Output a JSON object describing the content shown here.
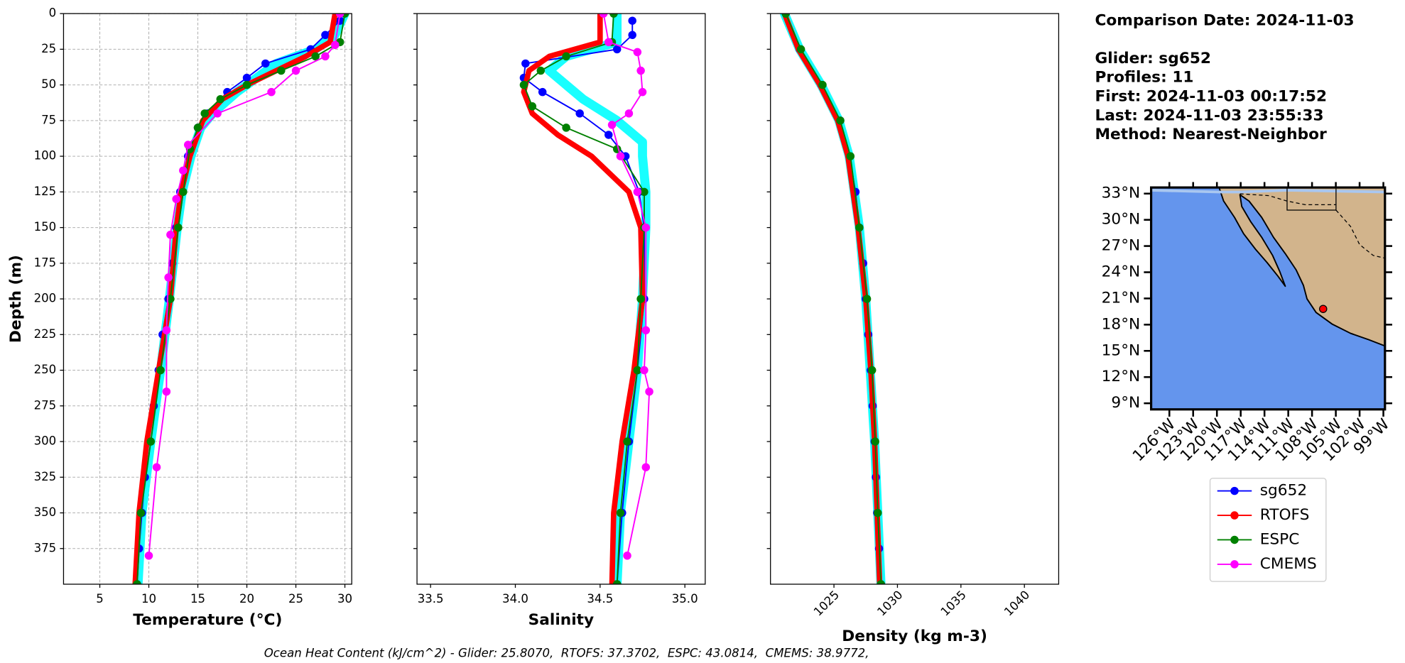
{
  "chart_data": [
    {
      "type": "line",
      "xlabel": "Temperature (°C)",
      "ylabel": "Depth (m)",
      "grid": true,
      "invert_y": true,
      "xlim": [
        1.3,
        30.7
      ],
      "xticks": [
        5,
        10,
        15,
        20,
        25,
        30
      ],
      "ylim": [
        0,
        400
      ],
      "yticks": [
        0,
        25,
        50,
        75,
        100,
        125,
        150,
        175,
        200,
        225,
        250,
        275,
        300,
        325,
        350,
        375
      ],
      "series": [
        {
          "color": "#00ffff",
          "depths": [
            0,
            15,
            25,
            35,
            45,
            55,
            70,
            80,
            100,
            125,
            150,
            200,
            250,
            300,
            350,
            400
          ],
          "values": [
            30,
            29,
            27,
            23,
            21,
            19,
            16.5,
            15.3,
            14.3,
            13.4,
            12.9,
            12.1,
            11.2,
            10.2,
            9.3,
            8.9
          ]
        },
        {
          "name": "sg652",
          "color": "#0000ff",
          "marker": true,
          "depths": [
            5,
            15,
            25,
            35,
            45,
            55,
            70,
            80,
            100,
            125,
            150,
            175,
            200,
            225,
            250,
            275,
            300,
            325,
            350,
            375,
            400
          ],
          "values": [
            29.5,
            28,
            26.5,
            21.9,
            20,
            18,
            16,
            15,
            14,
            13.2,
            12.8,
            12.4,
            12,
            11.4,
            11,
            10.5,
            10,
            9.6,
            9.3,
            9,
            8.8
          ]
        },
        {
          "name": "RTOFS",
          "color": "#ff0000",
          "marker": false,
          "width": 6,
          "depths": [
            0,
            20,
            30,
            40,
            50,
            60,
            75,
            100,
            125,
            150,
            200,
            250,
            300,
            350,
            400
          ],
          "values": [
            29,
            28.5,
            26,
            23,
            20,
            17.5,
            15.5,
            14.2,
            13.3,
            12.8,
            12.2,
            11,
            9.8,
            9,
            8.6
          ]
        },
        {
          "name": "ESPC",
          "color": "#008000",
          "marker": true,
          "depths": [
            0,
            20,
            30,
            40,
            50,
            60,
            70,
            80,
            95,
            125,
            150,
            200,
            250,
            300,
            350,
            400
          ],
          "values": [
            30,
            29.5,
            27,
            23.5,
            20,
            17.3,
            15.7,
            15,
            14.2,
            13.5,
            13,
            12.2,
            11.2,
            10.2,
            9.2,
            8.8
          ]
        },
        {
          "name": "CMEMS",
          "color": "#ff00ff",
          "marker": true,
          "depths": [
            0,
            22,
            30,
            40,
            55,
            70,
            92,
            110,
            130,
            155,
            185,
            222,
            265,
            318,
            380
          ],
          "values": [
            29.5,
            29,
            28,
            25,
            22.5,
            17,
            14,
            13.5,
            12.8,
            12.2,
            12,
            11.8,
            11.8,
            10.8,
            10
          ]
        }
      ]
    },
    {
      "type": "line",
      "xlabel": "Salinity",
      "sharey": true,
      "grid": false,
      "invert_y": true,
      "xlim": [
        33.42,
        35.12
      ],
      "xticks": [
        33.5,
        {
          "value": 34,
          "label": "34.0"
        },
        34.5,
        {
          "value": 35,
          "label": "35.0"
        }
      ],
      "series": [
        {
          "color": "#00ffff",
          "depths": [
            0,
            20,
            30,
            40,
            50,
            60,
            75,
            90,
            100,
            125,
            150,
            200,
            250,
            300,
            350,
            400
          ],
          "values": [
            34.6,
            34.6,
            34.3,
            34.2,
            34.3,
            34.4,
            34.6,
            34.75,
            34.75,
            34.77,
            34.77,
            34.75,
            34.72,
            34.67,
            34.62,
            34.6
          ]
        },
        {
          "color": "#0000ff",
          "marker": true,
          "depths": [
            5,
            15,
            25,
            35,
            45,
            55,
            70,
            85,
            100,
            125,
            150,
            200,
            250,
            300,
            350,
            400
          ],
          "values": [
            34.69,
            34.69,
            34.6,
            34.06,
            34.05,
            34.16,
            34.38,
            34.55,
            34.65,
            34.73,
            34.76,
            34.76,
            34.72,
            34.67,
            34.63,
            34.6
          ]
        },
        {
          "color": "#ff0000",
          "marker": false,
          "width": 6,
          "depths": [
            0,
            20,
            30,
            40,
            55,
            70,
            85,
            100,
            125,
            150,
            200,
            250,
            300,
            350,
            400
          ],
          "values": [
            34.5,
            34.5,
            34.2,
            34.08,
            34.05,
            34.1,
            34.25,
            34.45,
            34.67,
            34.74,
            34.75,
            34.7,
            34.63,
            34.58,
            34.57
          ]
        },
        {
          "color": "#008000",
          "marker": true,
          "depths": [
            0,
            20,
            30,
            40,
            50,
            65,
            80,
            95,
            125,
            150,
            200,
            250,
            300,
            350,
            400
          ],
          "values": [
            34.58,
            34.57,
            34.3,
            34.15,
            34.05,
            34.1,
            34.3,
            34.6,
            34.76,
            34.76,
            34.74,
            34.72,
            34.66,
            34.62,
            34.6
          ]
        },
        {
          "color": "#ff00ff",
          "marker": true,
          "depths": [
            0,
            20,
            27,
            40,
            55,
            70,
            78,
            100,
            125,
            150,
            222,
            250,
            265,
            318,
            380
          ],
          "values": [
            34.52,
            34.55,
            34.72,
            34.74,
            34.75,
            34.67,
            34.57,
            34.62,
            34.72,
            34.77,
            34.77,
            34.76,
            34.79,
            34.77,
            34.66
          ]
        }
      ]
    },
    {
      "type": "line",
      "xlabel": "Density (kg m-3)",
      "sharey": true,
      "grid": false,
      "invert_y": true,
      "xtick_rotation": -45,
      "xlim": [
        1020,
        1042.7
      ],
      "xticks": [
        1025,
        1030,
        1035,
        1040
      ],
      "series": [
        {
          "color": "#00ffff",
          "depths": [
            0,
            25,
            50,
            75,
            100,
            150,
            200,
            300,
            400
          ],
          "values": [
            1021.1,
            1022.3,
            1024,
            1025.4,
            1026.2,
            1027,
            1027.5,
            1028.2,
            1028.7
          ]
        },
        {
          "color": "#0000ff",
          "marker": true,
          "depths": [
            0,
            25,
            50,
            75,
            100,
            125,
            150,
            175,
            200,
            225,
            250,
            275,
            300,
            325,
            350,
            375,
            400
          ],
          "values": [
            1021.2,
            1022.3,
            1024,
            1025.5,
            1026.2,
            1026.7,
            1027,
            1027.3,
            1027.5,
            1027.7,
            1027.9,
            1028.05,
            1028.2,
            1028.3,
            1028.4,
            1028.55,
            1028.7
          ]
        },
        {
          "color": "#ff0000",
          "marker": false,
          "width": 6,
          "depths": [
            0,
            25,
            50,
            75,
            100,
            150,
            200,
            250,
            300,
            350,
            400
          ],
          "values": [
            1021.1,
            1022.2,
            1023.9,
            1025.3,
            1026.1,
            1026.9,
            1027.5,
            1027.9,
            1028.2,
            1028.4,
            1028.6
          ]
        },
        {
          "color": "#008000",
          "marker": true,
          "depths": [
            0,
            25,
            50,
            75,
            100,
            150,
            200,
            250,
            300,
            350,
            400
          ],
          "values": [
            1021.2,
            1022.4,
            1024.1,
            1025.5,
            1026.3,
            1027,
            1027.6,
            1028,
            1028.25,
            1028.45,
            1028.7
          ]
        }
      ]
    },
    {
      "type": "map",
      "xlim": [
        -128.3,
        -98.8
      ],
      "ylim": [
        8.3,
        33.7
      ],
      "xticks": [
        {
          "value": -126,
          "label": "126°W"
        },
        {
          "value": -123,
          "label": "123°W"
        },
        {
          "value": -120,
          "label": "120°W"
        },
        {
          "value": -117,
          "label": "117°W"
        },
        {
          "value": -114,
          "label": "114°W"
        },
        {
          "value": -111,
          "label": "111°W"
        },
        {
          "value": -108,
          "label": "108°W"
        },
        {
          "value": -105,
          "label": "105°W"
        },
        {
          "value": -102,
          "label": "102°W"
        },
        {
          "value": -99,
          "label": "99°W"
        }
      ],
      "yticks": [
        {
          "value": 33,
          "label": "33°N"
        },
        {
          "value": 30,
          "label": "30°N"
        },
        {
          "value": 27,
          "label": "27°N"
        },
        {
          "value": 24,
          "label": "24°N"
        },
        {
          "value": 21,
          "label": "21°N"
        },
        {
          "value": 18,
          "label": "18°N"
        },
        {
          "value": 15,
          "label": "15°N"
        },
        {
          "value": 12,
          "label": "12°N"
        },
        {
          "value": 9,
          "label": "9°N"
        }
      ],
      "glider_location": {
        "lon": -106.6,
        "lat": 19.8
      },
      "marker_color": "#ff0000"
    }
  ],
  "info": [
    "Comparison Date: 2024-11-03",
    "Glider: sg652",
    "Profiles: 11",
    "First: 2024-11-03 00:17:52",
    "Last: 2024-11-03 23:55:33",
    "Method: Nearest-Neighbor"
  ],
  "footer": "Ocean Heat Content (kJ/cm^2) - Glider: 25.8070,  RTOFS: 37.3702,  ESPC: 43.0814,  CMEMS: 38.9772,"
}
